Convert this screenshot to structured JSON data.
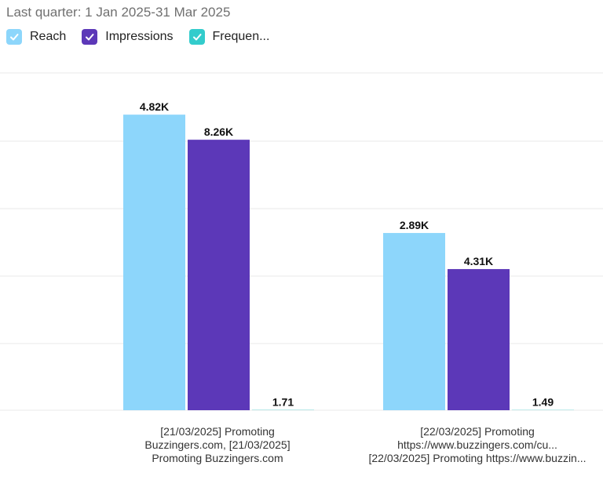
{
  "subtitle": "Last quarter: 1 Jan 2025-31 Mar 2025",
  "legend": [
    {
      "label": "Reach",
      "color": "#8dd6fb"
    },
    {
      "label": "Impressions",
      "color": "#5c38b8"
    },
    {
      "label": "Frequen...",
      "color": "#33cccc"
    }
  ],
  "chart_data": {
    "type": "bar",
    "categories": [
      [
        "[21/03/2025] Promoting",
        "Buzzingers.com, [21/03/2025]",
        "Promoting Buzzingers.com"
      ],
      [
        "[22/03/2025] Promoting",
        "https://www.buzzingers.com/cu...",
        "[22/03/2025] Promoting https://www.buzzin..."
      ]
    ],
    "series": [
      {
        "name": "Reach",
        "color": "#8dd6fb",
        "values": [
          4820,
          2890
        ],
        "labels": [
          "4.82K",
          "2.89K"
        ]
      },
      {
        "name": "Impressions",
        "color": "#5c38b8",
        "values": [
          8260,
          4310
        ],
        "labels": [
          "8.26K",
          "4.31K"
        ]
      },
      {
        "name": "Frequen...",
        "color": "#33cccc",
        "values": [
          1.71,
          1.49
        ],
        "labels": [
          "1.71",
          "1.49"
        ]
      }
    ],
    "grid": true,
    "legend_position": "top-left"
  }
}
